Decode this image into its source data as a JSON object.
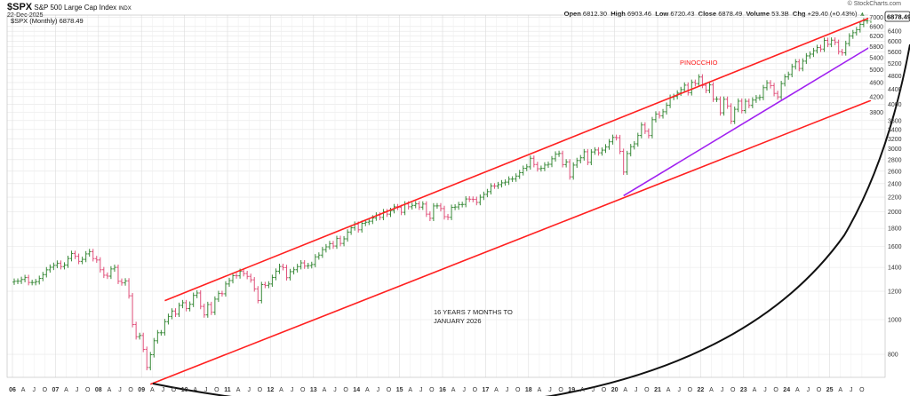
{
  "header": {
    "symbol": "$SPX",
    "name": "S&P 500 Large Cap Index",
    "exchange": "INDX",
    "date": "22-Dec-2025",
    "watermark": "© StockCharts.com",
    "open_label": "Open",
    "open": "6812.30",
    "high_label": "High",
    "high": "6903.46",
    "low_label": "Low",
    "low": "6720.43",
    "close_label": "Close",
    "close": "6878.49",
    "volume_label": "Volume",
    "volume": "53.3B",
    "chg_label": "Chg",
    "chg": "+29.40 (+0.43%)",
    "legend": "$SPX (Monthly) 6878.49",
    "price_tag": "6878.49"
  },
  "colors": {
    "up": "#3a8a3a",
    "down": "#e0507a",
    "channel": "#ff2020",
    "trend": "#a020f0",
    "curve": "#111111"
  },
  "chart_data": {
    "type": "ohlc",
    "title": "$SPX S&P 500 Large Cap Index (Monthly)",
    "y_scale": "log",
    "ylim": [
      600,
      7200
    ],
    "y_ticks": [
      800,
      1000,
      1200,
      1400,
      1600,
      1800,
      2000,
      2200,
      2400,
      2600,
      2800,
      3000,
      3200,
      3400,
      3600,
      3800,
      4000,
      4200,
      4400,
      4600,
      4800,
      5000,
      5200,
      5400,
      5600,
      5800,
      6000,
      6200,
      6400,
      6600,
      7000
    ],
    "x_years": [
      "06",
      "07",
      "08",
      "09",
      "10",
      "11",
      "12",
      "13",
      "14",
      "15",
      "16",
      "17",
      "18",
      "19",
      "20",
      "21",
      "22",
      "23",
      "24",
      "25"
    ],
    "x_quarter_labels": [
      "A",
      "J",
      "O"
    ],
    "start_year": 2006,
    "monthly_close": [
      1280,
      1281,
      1295,
      1311,
      1270,
      1270,
      1277,
      1304,
      1336,
      1378,
      1401,
      1418,
      1438,
      1407,
      1421,
      1482,
      1531,
      1503,
      1455,
      1474,
      1527,
      1549,
      1481,
      1468,
      1379,
      1331,
      1323,
      1386,
      1400,
      1280,
      1267,
      1283,
      1166,
      969,
      896,
      903,
      826,
      735,
      798,
      873,
      919,
      919,
      987,
      1021,
      1057,
      1036,
      1096,
      1115,
      1074,
      1104,
      1169,
      1187,
      1089,
      1031,
      1102,
      1049,
      1141,
      1183,
      1181,
      1258,
      1286,
      1327,
      1326,
      1364,
      1345,
      1321,
      1292,
      1219,
      1131,
      1253,
      1247,
      1258,
      1312,
      1366,
      1408,
      1398,
      1310,
      1362,
      1379,
      1407,
      1441,
      1412,
      1416,
      1426,
      1498,
      1515,
      1569,
      1598,
      1631,
      1606,
      1686,
      1633,
      1682,
      1757,
      1806,
      1848,
      1783,
      1859,
      1872,
      1884,
      1924,
      1960,
      1931,
      2003,
      1972,
      2018,
      2068,
      2059,
      1995,
      2105,
      2068,
      2086,
      2107,
      2063,
      2104,
      1972,
      1920,
      2079,
      2080,
      2044,
      1940,
      1932,
      2060,
      2065,
      2097,
      2099,
      2174,
      2171,
      2168,
      2126,
      2199,
      2239,
      2279,
      2364,
      2363,
      2384,
      2412,
      2423,
      2470,
      2472,
      2519,
      2575,
      2648,
      2674,
      2824,
      2714,
      2641,
      2648,
      2705,
      2718,
      2816,
      2902,
      2914,
      2712,
      2760,
      2507,
      2704,
      2784,
      2834,
      2946,
      2752,
      2942,
      2980,
      2926,
      2977,
      3038,
      3141,
      3231,
      3226,
      2954,
      2585,
      2912,
      3044,
      3100,
      3271,
      3500,
      3363,
      3270,
      3622,
      3756,
      3714,
      3811,
      3973,
      4181,
      4204,
      4298,
      4395,
      4523,
      4308,
      4605,
      4567,
      4766,
      4516,
      4374,
      4530,
      4132,
      4132,
      3785,
      4130,
      3955,
      3586,
      3872,
      4080,
      3840,
      4077,
      3970,
      4109,
      4169,
      4180,
      4450,
      4589,
      4508,
      4288,
      4194,
      4568,
      4770,
      4846,
      5096,
      5254,
      5036,
      5278,
      5460,
      5522,
      5648,
      5762,
      5705,
      6032,
      5882,
      6041,
      5955,
      5612,
      5569,
      5912,
      6205,
      6339,
      6460,
      6688,
      6840,
      6849,
      6878
    ],
    "annotations": [
      {
        "text": "PINOCCHIO"
      },
      {
        "text": "16 YEARS  7 MONTHS TO"
      },
      {
        "text": "JANUARY 2026"
      }
    ],
    "lines": [
      {
        "name": "upper-channel",
        "from": [
          "2009-07",
          1130
        ],
        "to": [
          "2025-12",
          7000
        ]
      },
      {
        "name": "lower-channel",
        "from": [
          "2009-03",
          660
        ],
        "to": [
          "2025-12",
          4100
        ]
      },
      {
        "name": "trendline",
        "from": [
          "2020-03",
          2220
        ],
        "to": [
          "2025-12",
          5800
        ]
      }
    ]
  }
}
